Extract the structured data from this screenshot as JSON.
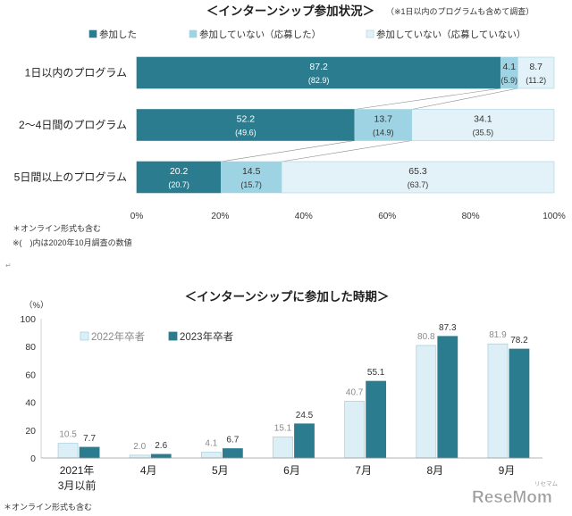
{
  "chart_data": [
    {
      "type": "bar",
      "orientation": "horizontal",
      "stacked": true,
      "title": "＜インターンシップ参加状況＞",
      "subtitle": "（※1日以内のプログラムも含めて調査）",
      "categories": [
        "1日以内のプログラム",
        "2～4日間のプログラム",
        "5日間以上のプログラム"
      ],
      "series": [
        {
          "name": "参加した",
          "color": "#2c7c8f",
          "values": [
            87.2,
            52.2,
            20.2
          ],
          "prior_values": [
            82.9,
            49.6,
            20.7
          ]
        },
        {
          "name": "参加していない（応募した）",
          "color": "#9dd3e3",
          "values": [
            4.1,
            13.7,
            14.5
          ],
          "prior_values": [
            5.9,
            14.9,
            15.7
          ]
        },
        {
          "name": "参加していない（応募していない）",
          "color": "#e2f2f8",
          "values": [
            8.7,
            34.1,
            65.3
          ],
          "prior_values": [
            11.2,
            35.5,
            63.7
          ]
        }
      ],
      "xlim": [
        0,
        100
      ],
      "xtick_labels": [
        "0%",
        "20%",
        "40%",
        "60%",
        "80%",
        "100%"
      ],
      "grid": false,
      "legend": "top",
      "notes": [
        "＊オンライン形式も含む",
        "※(　)内は2020年10月調査の数値"
      ]
    },
    {
      "type": "bar",
      "title": "＜インターンシップに参加した時期＞",
      "ylabel": "（%）",
      "categories": [
        "2021年\n3月以前",
        "4月",
        "5月",
        "6月",
        "7月",
        "8月",
        "9月"
      ],
      "series": [
        {
          "name": "2022年卒者",
          "color": "#ddeff6",
          "label_color": "#8a8a8a",
          "values": [
            10.5,
            2.0,
            4.1,
            15.1,
            40.7,
            80.8,
            81.9
          ]
        },
        {
          "name": "2023年卒者",
          "color": "#2c7c8f",
          "label_color": "#333333",
          "values": [
            7.7,
            2.6,
            6.7,
            24.5,
            55.1,
            87.3,
            78.2
          ]
        }
      ],
      "ylim": [
        0,
        100
      ],
      "yticks": [
        0,
        20,
        40,
        60,
        80,
        100
      ],
      "grid": false,
      "legend": "top-left",
      "notes": [
        "＊オンライン形式も含む"
      ]
    }
  ],
  "doc": {
    "paragraph_mark": "↵"
  },
  "logo": {
    "text": "ReseMom",
    "kana": "リセマム"
  }
}
